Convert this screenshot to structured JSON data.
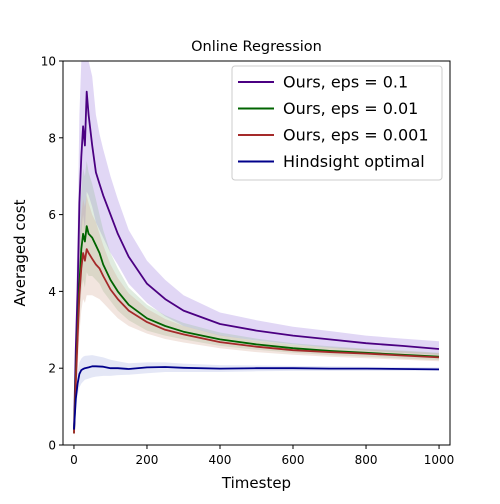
{
  "chart_data": {
    "type": "line",
    "title": "Online Regression",
    "xlabel": "Timestep",
    "ylabel": "Averaged cost",
    "xlim": [
      -30,
      1030
    ],
    "ylim": [
      0,
      10
    ],
    "xticks": [
      0,
      200,
      400,
      600,
      800,
      1000
    ],
    "yticks": [
      0,
      2,
      4,
      6,
      8,
      10
    ],
    "xtick_labels": [
      "0",
      "200",
      "400",
      "600",
      "800",
      "1000"
    ],
    "ytick_labels": [
      "0",
      "2",
      "4",
      "6",
      "8",
      "10"
    ],
    "grid": false,
    "legend_position": "top-right",
    "series": [
      {
        "name": "Ours, eps = 0.1",
        "color": "#4b0082",
        "band_color": "#9370db",
        "x": [
          0,
          5,
          10,
          15,
          20,
          25,
          30,
          35,
          40,
          50,
          60,
          70,
          80,
          100,
          120,
          150,
          200,
          250,
          300,
          400,
          500,
          600,
          700,
          800,
          900,
          1000
        ],
        "y": [
          0.4,
          2.5,
          4.0,
          6.3,
          7.5,
          8.3,
          7.8,
          9.2,
          8.6,
          7.8,
          7.1,
          6.8,
          6.5,
          6.0,
          5.5,
          4.9,
          4.2,
          3.8,
          3.5,
          3.15,
          2.98,
          2.85,
          2.75,
          2.65,
          2.58,
          2.5
        ],
        "band_low": [
          0.3,
          1.8,
          3.0,
          4.5,
          5.5,
          6.0,
          5.6,
          6.6,
          6.5,
          6.2,
          5.8,
          5.6,
          5.4,
          5.0,
          4.7,
          4.2,
          3.7,
          3.35,
          3.1,
          2.85,
          2.72,
          2.62,
          2.53,
          2.46,
          2.4,
          2.35
        ],
        "band_high": [
          0.5,
          3.4,
          5.6,
          8.6,
          10,
          10,
          10,
          10,
          10,
          9.6,
          8.6,
          8.1,
          7.7,
          7.0,
          6.4,
          5.6,
          4.8,
          4.3,
          3.9,
          3.45,
          3.25,
          3.08,
          2.97,
          2.85,
          2.77,
          2.7
        ]
      },
      {
        "name": "Ours, eps = 0.01",
        "color": "#006400",
        "band_color": "#8fbc8f",
        "x": [
          0,
          5,
          10,
          15,
          20,
          25,
          30,
          35,
          40,
          50,
          60,
          70,
          80,
          100,
          120,
          150,
          200,
          250,
          300,
          400,
          500,
          600,
          700,
          800,
          900,
          1000
        ],
        "y": [
          0.3,
          1.8,
          3.0,
          4.2,
          5.1,
          5.5,
          5.3,
          5.7,
          5.5,
          5.4,
          5.2,
          5.0,
          4.7,
          4.3,
          4.0,
          3.65,
          3.3,
          3.1,
          2.95,
          2.75,
          2.62,
          2.52,
          2.45,
          2.4,
          2.35,
          2.3
        ],
        "band_low": [
          0.2,
          1.3,
          2.2,
          3.2,
          4.0,
          4.3,
          4.1,
          4.5,
          4.4,
          4.4,
          4.3,
          4.2,
          4.0,
          3.75,
          3.5,
          3.25,
          2.98,
          2.85,
          2.75,
          2.58,
          2.48,
          2.4,
          2.34,
          2.3,
          2.25,
          2.21
        ],
        "band_high": [
          0.4,
          2.4,
          4.0,
          5.6,
          6.6,
          7.2,
          7.0,
          7.4,
          7.1,
          6.8,
          6.4,
          6.0,
          5.6,
          5.0,
          4.6,
          4.1,
          3.65,
          3.38,
          3.18,
          2.93,
          2.77,
          2.65,
          2.57,
          2.51,
          2.46,
          2.4
        ]
      },
      {
        "name": "Ours, eps = 0.001",
        "color": "#a52a2a",
        "band_color": "#d2a28c",
        "x": [
          0,
          5,
          10,
          15,
          20,
          25,
          30,
          35,
          40,
          50,
          60,
          70,
          80,
          100,
          120,
          150,
          200,
          250,
          300,
          400,
          500,
          600,
          700,
          800,
          900,
          1000
        ],
        "y": [
          0.3,
          1.6,
          2.8,
          3.9,
          4.6,
          5.0,
          4.8,
          5.1,
          5.0,
          4.85,
          4.7,
          4.6,
          4.4,
          4.05,
          3.8,
          3.5,
          3.2,
          3.0,
          2.88,
          2.68,
          2.56,
          2.47,
          2.42,
          2.38,
          2.33,
          2.28
        ],
        "band_low": [
          0.2,
          1.2,
          2.0,
          2.9,
          3.5,
          3.8,
          3.7,
          3.9,
          3.9,
          3.9,
          3.85,
          3.8,
          3.7,
          3.5,
          3.3,
          3.1,
          2.9,
          2.76,
          2.67,
          2.52,
          2.42,
          2.35,
          2.3,
          2.26,
          2.22,
          2.18
        ],
        "band_high": [
          0.4,
          2.2,
          3.8,
          5.2,
          6.0,
          6.4,
          6.2,
          6.5,
          6.3,
          6.0,
          5.8,
          5.5,
          5.2,
          4.7,
          4.35,
          3.95,
          3.55,
          3.28,
          3.1,
          2.86,
          2.71,
          2.61,
          2.54,
          2.49,
          2.44,
          2.39
        ]
      },
      {
        "name": "Hindsight optimal",
        "color": "#00008b",
        "band_color": "#9fa8e0",
        "x": [
          0,
          5,
          10,
          15,
          20,
          25,
          30,
          40,
          50,
          60,
          80,
          100,
          120,
          150,
          200,
          250,
          300,
          400,
          500,
          600,
          700,
          800,
          900,
          1000
        ],
        "y": [
          0.4,
          1.2,
          1.6,
          1.85,
          1.95,
          1.98,
          2.0,
          2.02,
          2.05,
          2.05,
          2.04,
          2.0,
          2.0,
          1.98,
          2.02,
          2.03,
          2.01,
          1.99,
          2.0,
          2.0,
          1.99,
          1.99,
          1.98,
          1.97
        ],
        "band_low": [
          0.3,
          0.9,
          1.3,
          1.5,
          1.6,
          1.65,
          1.7,
          1.73,
          1.76,
          1.78,
          1.8,
          1.8,
          1.82,
          1.83,
          1.87,
          1.9,
          1.9,
          1.9,
          1.92,
          1.93,
          1.93,
          1.93,
          1.93,
          1.93
        ],
        "band_high": [
          0.5,
          1.5,
          1.9,
          2.15,
          2.25,
          2.3,
          2.32,
          2.33,
          2.34,
          2.32,
          2.28,
          2.22,
          2.18,
          2.13,
          2.15,
          2.15,
          2.12,
          2.08,
          2.07,
          2.06,
          2.05,
          2.04,
          2.03,
          2.02
        ]
      }
    ]
  }
}
